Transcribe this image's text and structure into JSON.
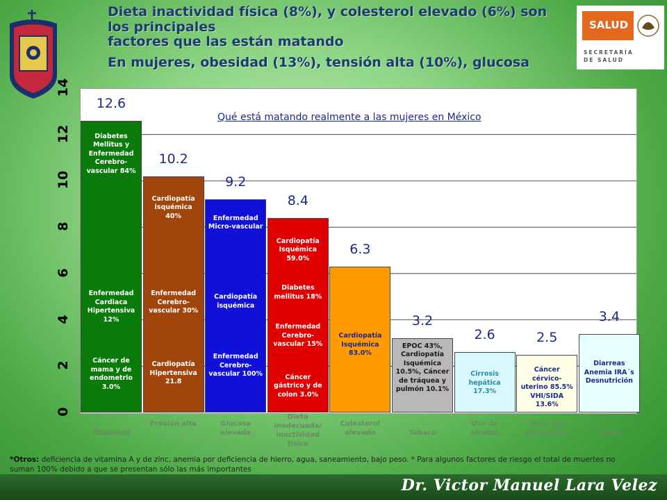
{
  "header": {
    "line1": "Dieta inactividad física (8%), y colesterol elevado (6%) son",
    "line2": "los principales",
    "line3": "factores que las están matando",
    "line4": "En mujeres, obesidad (13%), tensión alta (10%), glucosa"
  },
  "logo": {
    "salud": "SALUD",
    "secretaria_line1": "SECRETARÍA",
    "secretaria_line2": "DE SALUD"
  },
  "chart_data": {
    "type": "bar",
    "title": "Qué está matando realmente a las mujeres en México",
    "ylim": [
      0,
      14
    ],
    "yticks": [
      "0",
      "2",
      "4",
      "6",
      "8",
      "10",
      "12",
      "14"
    ],
    "grid": true,
    "categories": [
      "Obesidad",
      "Presión alta",
      "Glucosa elevada",
      "Dieta inadecuada/ inactividad física",
      "Colesterol elevado",
      "Tabaco",
      "Uso de alcohol",
      "Sexo sin protección",
      "Otros"
    ],
    "values": [
      12.6,
      10.2,
      9.2,
      8.4,
      6.3,
      3.2,
      2.6,
      2.5,
      3.4
    ],
    "value_labels": [
      "12.6",
      "10.2",
      "9.2",
      "8.4",
      "6.3",
      "3.2",
      "2.6",
      "2.5",
      "3.4"
    ],
    "colors": [
      "#0a7a0a",
      "#a0450b",
      "#1010d8",
      "#e00000",
      "#ff9a00",
      "#b8b8b8",
      "#d8f8ff",
      "#ffffe8",
      "#e6ffff"
    ],
    "annotations": [
      [
        "Diabetes Mellitus y Enfermedad Cerebro-vascular 84%",
        "Enfermedad Cardiaca Hipertensiva 12%",
        "Cáncer de mama y de endometrio 3.0%"
      ],
      [
        "Cardiopatía isquémica 40%",
        "Enfermedad Cerebro-vascular 30%",
        "Cardiopatía Hipertensiva 21.8"
      ],
      [
        "Enfermedad Micro-vascular",
        "Cardiopatía isquémica",
        "Enfermedad Cerebro-vascular 100%"
      ],
      [
        "Cardiopatía Isquémica 59.0%",
        "Diabetes mellitus 18%",
        "Enfermedad Cerebro-vascular 15%",
        "Cáncer gástrico y de colon 3.0%"
      ],
      [
        "Cardiopatía Isquémica 83.0%"
      ],
      [
        "EPOC 43%, Cardiopatía Isquémica 10.5%, Cáncer de tráquea y pulmón 10.1%"
      ],
      [
        "Cirrosis hepática 17.3%"
      ],
      [
        "Cáncer cérvico-uterino 85.5% VHI/SIDA 13.6%"
      ],
      [
        "Diarreas Anemia IRA´s Desnutrición"
      ]
    ]
  },
  "footnote": {
    "bold": "*Otros:",
    "text": " deficiencia de vitamina A y de zinc, anemia por deficiencia de hierro, agua, saneamiento, bajo peso. * Para algunos factores de riesgo el total de muertes no suman 100% debido a que se presentan sólo las más importantes"
  },
  "signature": "Dr. Victor Manuel Lara Velez"
}
